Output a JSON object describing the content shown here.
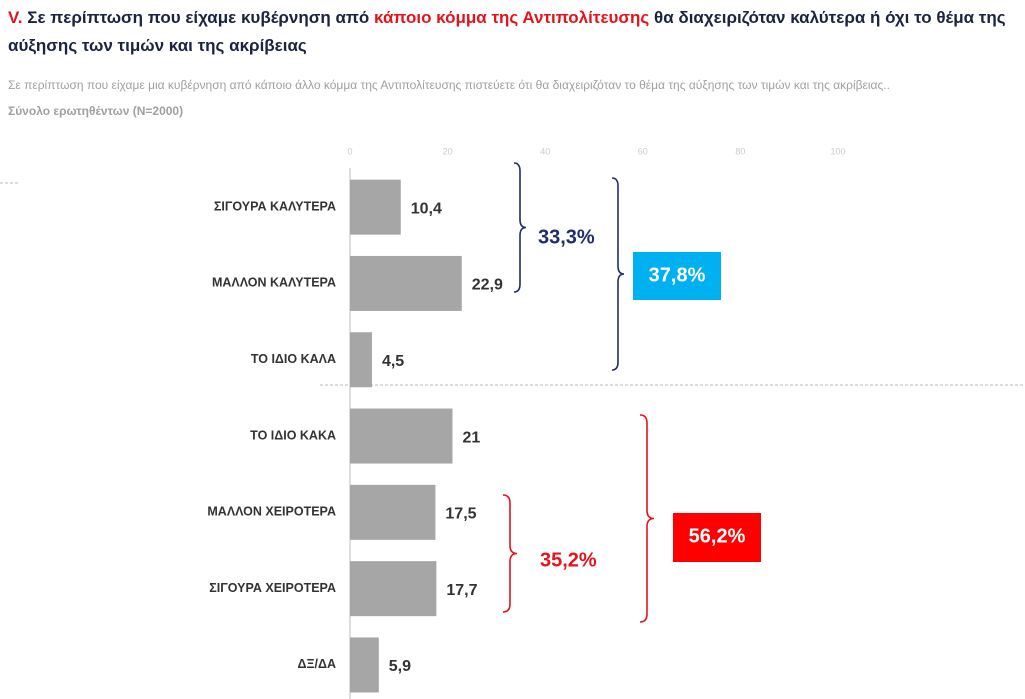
{
  "chart_data": {
    "type": "bar",
    "orientation": "horizontal",
    "title": [
      "V.",
      "Σε περίπτωση που είχαμε κυβέρνηση από",
      "κάποιο κόμμα της Αντιπολίτευσης",
      "θα διαχειριζόταν καλύτερα ή όχι το θέμα της αύξησης των τιμών και της ακρίβειας"
    ],
    "subtitle": [
      "Σε περίπτωση που είχαμε μια κυβέρνηση από κάποιο άλλο κόμμα της Αντιπολίτευσης πιστεύετε ότι θα διαχειριζόταν το θέμα της αύξησης των τιμών και της ακρίβειας..",
      "Σύνολο ερωτηθέντων (N=2000)"
    ],
    "categories": [
      "ΣΙΓΟΥΡΑ ΚΑΛΥΤΕΡΑ",
      "ΜΑΛΛΟΝ ΚΑΛΥΤΕΡΑ",
      "ΤΟ ΙΔΙΟ ΚΑΛΑ",
      "ΤΟ ΙΔΙΟ ΚΑΚΑ",
      "ΜΑΛΛΟΝ ΧΕΙΡΟΤΕΡΑ",
      "ΣΙΓΟΥΡΑ ΧΕΙΡΟΤΕΡΑ",
      "ΔΞ/ΔΑ"
    ],
    "values": [
      10.4,
      22.9,
      4.5,
      21,
      17.5,
      17.7,
      5.9
    ],
    "value_labels": [
      "10,4",
      "22,9",
      "4,5",
      "21",
      "17,5",
      "17,7",
      "5,9"
    ],
    "color": "#a6a6a6",
    "xlim": [
      0,
      100
    ],
    "xticks": [
      0,
      20,
      40,
      60,
      80,
      100
    ],
    "annotations": [
      {
        "value": 33.3,
        "label": "33,3%",
        "color": "#1f2d6b"
      },
      {
        "value": 37.8,
        "label": "37,8%",
        "color": "#00b0f0"
      },
      {
        "value": 35.2,
        "label": "35,2%",
        "color": "#e3141b"
      },
      {
        "value": 56.2,
        "label": "56,2%",
        "color": "#ff0000"
      }
    ]
  }
}
